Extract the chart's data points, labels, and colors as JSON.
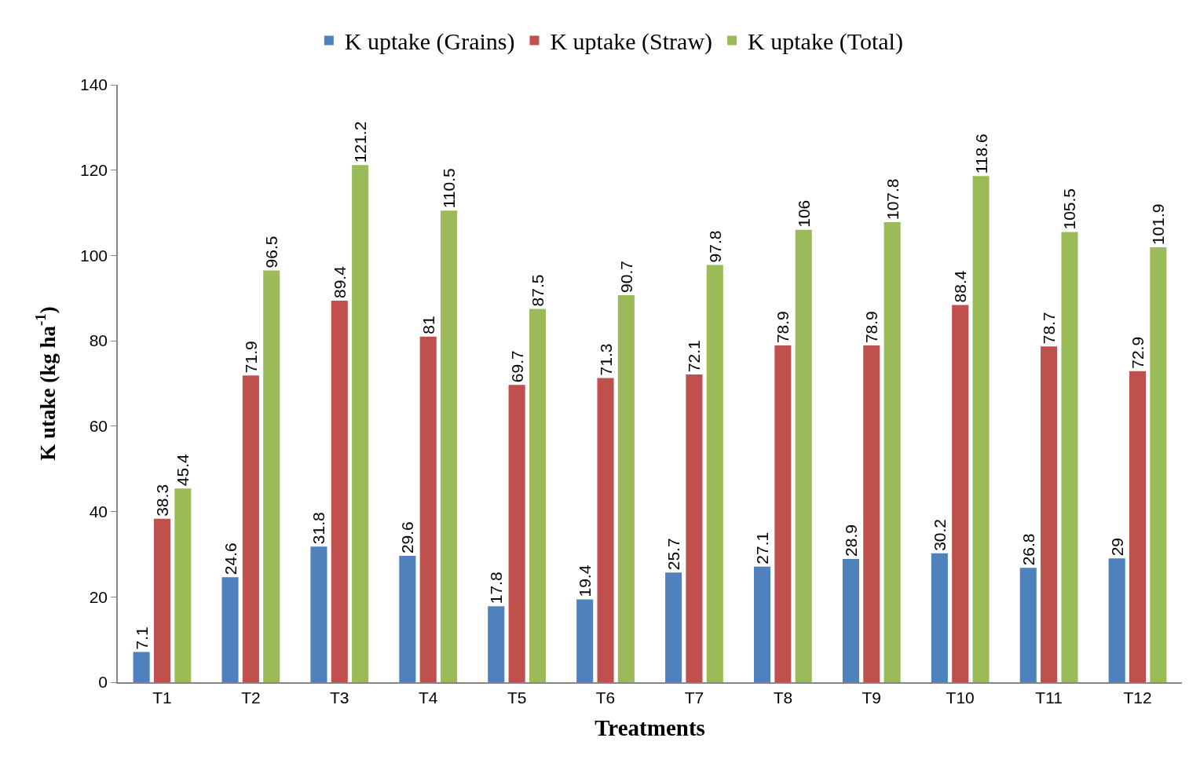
{
  "chart_data": {
    "type": "bar",
    "xlabel": "Treatments",
    "ylabel": "K utake (kg ha$^{-1}$)",
    "categories": [
      "T1",
      "T2",
      "T3",
      "T4",
      "T5",
      "T6",
      "T7",
      "T8",
      "T9",
      "T10",
      "T11",
      "T12"
    ],
    "series": [
      {
        "name": "K uptake (Grains)",
        "color": "#4f81bd",
        "values": [
          7.1,
          24.6,
          31.8,
          29.6,
          17.8,
          19.4,
          25.7,
          27.1,
          28.9,
          30.2,
          26.8,
          29
        ]
      },
      {
        "name": "K uptake (Straw)",
        "color": "#c0504d",
        "values": [
          38.3,
          71.9,
          89.4,
          81,
          69.7,
          71.3,
          72.1,
          78.9,
          78.9,
          88.4,
          78.7,
          72.9
        ]
      },
      {
        "name": "K uptake (Total)",
        "color": "#9bbb59",
        "values": [
          45.4,
          96.5,
          121.2,
          110.5,
          87.5,
          90.7,
          97.8,
          106,
          107.8,
          118.6,
          105.5,
          101.9
        ]
      }
    ],
    "ylim": [
      0,
      140
    ],
    "yticks": [
      0,
      20,
      40,
      60,
      80,
      100,
      120,
      140
    ],
    "data_labels": true,
    "legend": "top"
  }
}
